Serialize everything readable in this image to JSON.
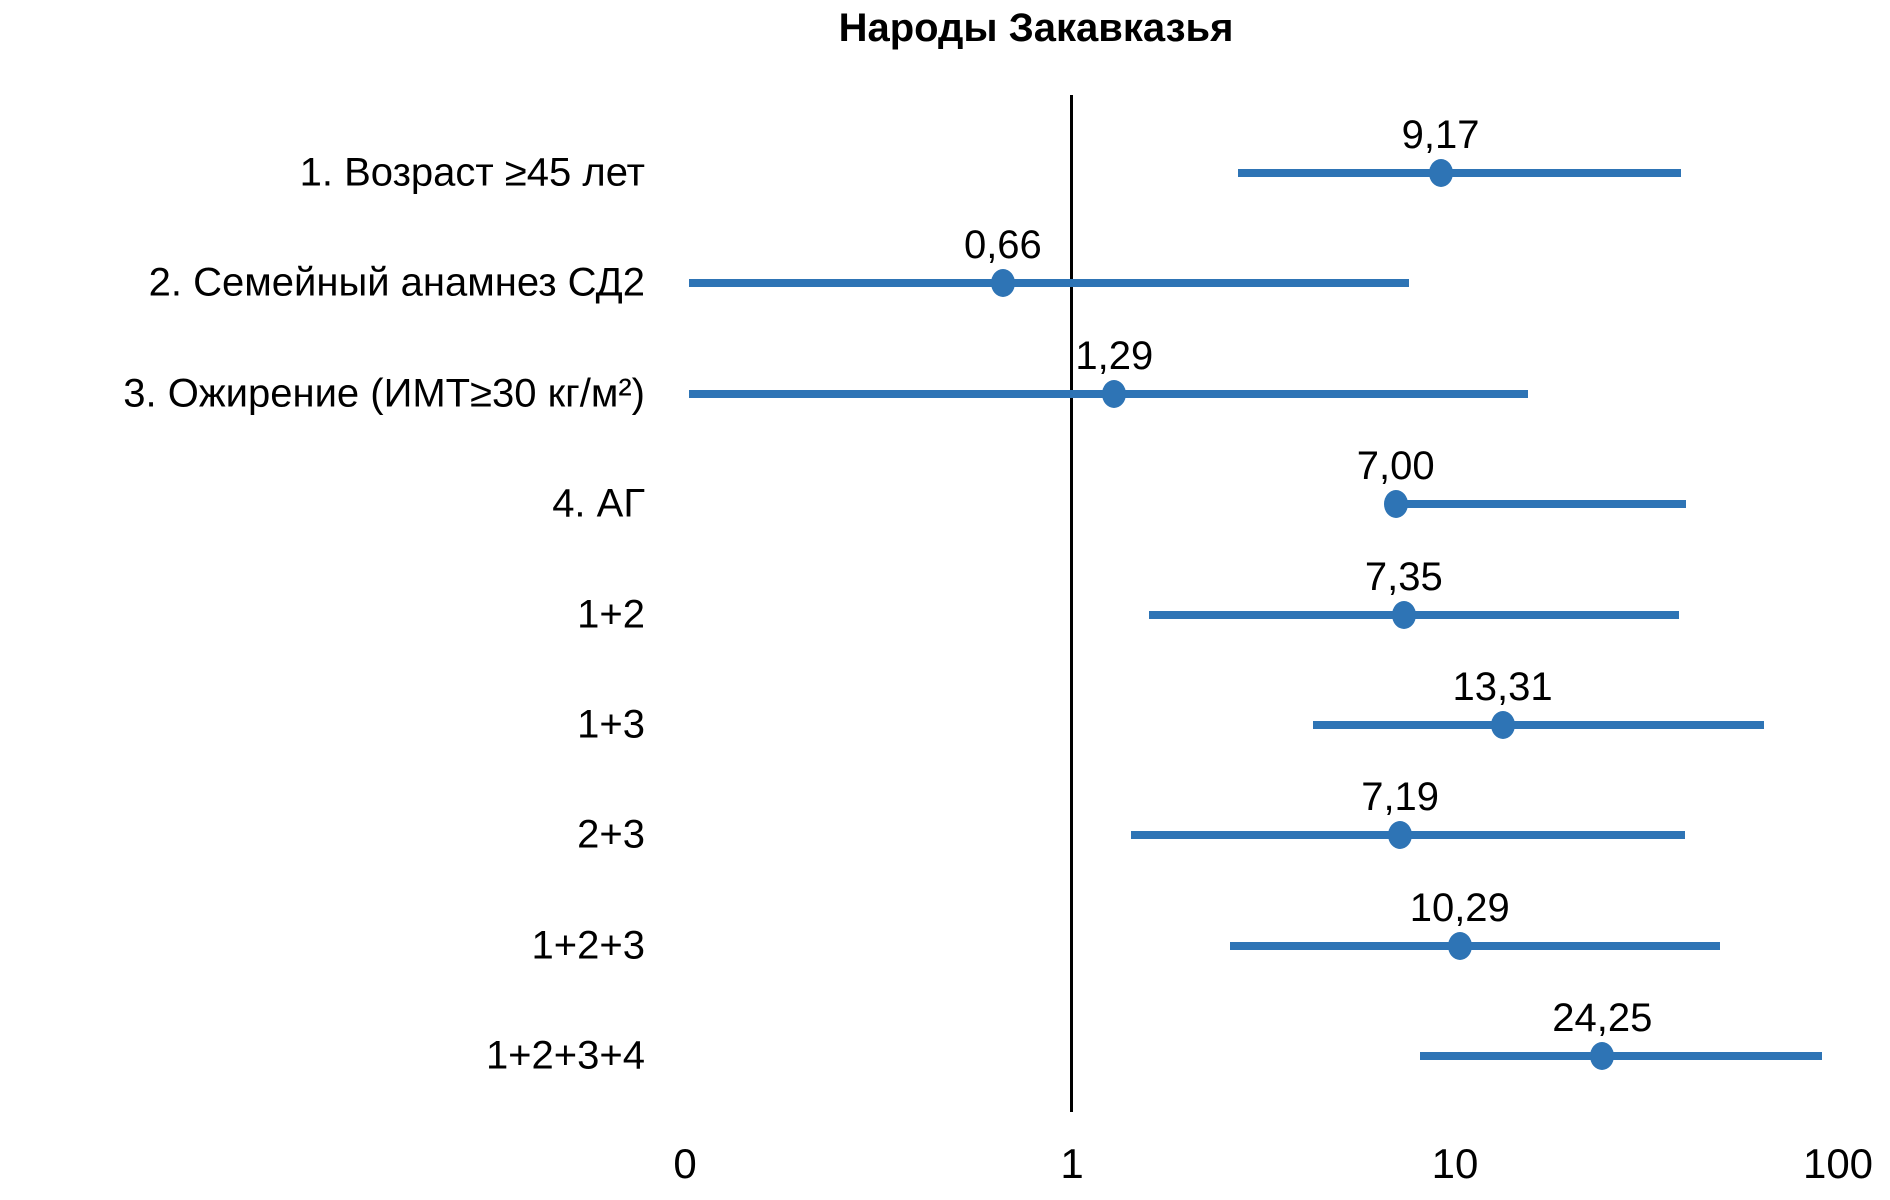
{
  "title": "Народы Закавказья",
  "colors": {
    "marker_blue": "#2E74B5",
    "reference_line_black": "#000000",
    "text_black": "#000000"
  },
  "chart_data": {
    "type": "scatter",
    "variant": "forest-plot-odds-ratios",
    "title": "Народы Закавказья",
    "xlabel": "",
    "ylabel": "",
    "x_scale": "log10",
    "x_axis_tick_labels": [
      "0",
      "1",
      "10",
      "100"
    ],
    "reference_line_x": 1,
    "legend": "none",
    "grid": "off",
    "decimal_separator": ",",
    "rows": [
      {
        "label": "1. Возраст ≥45 лет",
        "value_label": "9,17",
        "or": 9.17,
        "ci_low": 2.72,
        "ci_high": 38.8
      },
      {
        "label": "2. Семейный анамнез СД2",
        "value_label": "0,66",
        "or": 0.66,
        "ci_low": 0.1,
        "ci_high": 7.6
      },
      {
        "label": "3. Ожирение (ИМТ≥30 кг/м²)",
        "value_label": "1,29",
        "or": 1.29,
        "ci_low": 0.1,
        "ci_high": 15.5
      },
      {
        "label": "4. АГ",
        "value_label": "7,00",
        "or": 7.0,
        "ci_low": 7.0,
        "ci_high": 40.1
      },
      {
        "label": "1+2",
        "value_label": "7,35",
        "or": 7.35,
        "ci_low": 1.59,
        "ci_high": 38.5
      },
      {
        "label": "1+3",
        "value_label": "13,31",
        "or": 13.31,
        "ci_low": 4.25,
        "ci_high": 64.0
      },
      {
        "label": "2+3",
        "value_label": "7,19",
        "or": 7.19,
        "ci_low": 1.43,
        "ci_high": 39.9
      },
      {
        "label": "1+2+3",
        "value_label": "10,29",
        "or": 10.29,
        "ci_low": 2.59,
        "ci_high": 49.2
      },
      {
        "label": "1+2+3+4",
        "value_label": "24,25",
        "or": 24.25,
        "ci_low": 8.1,
        "ci_high": 91.0
      }
    ]
  }
}
